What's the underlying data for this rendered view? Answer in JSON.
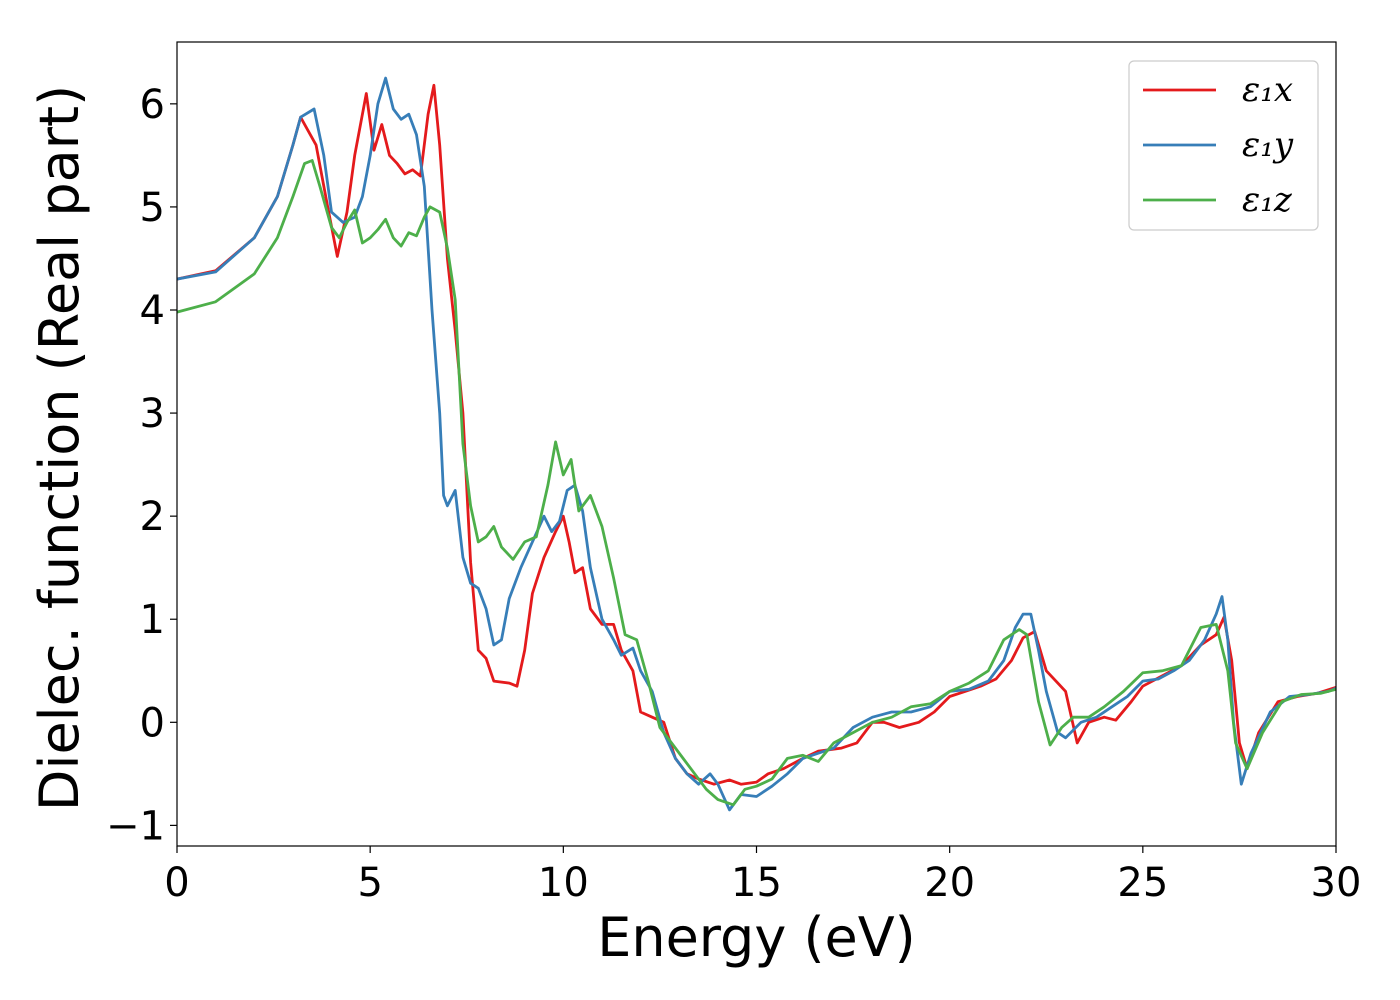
{
  "chart_data": {
    "type": "line",
    "title": "",
    "xlabel": "Energy (eV)",
    "ylabel": "Dielec. function (Real part)",
    "xlim": [
      0,
      30
    ],
    "ylim": [
      -1.2,
      6.6
    ],
    "xticks": [
      0,
      5,
      10,
      15,
      20,
      25,
      30
    ],
    "xtick_labels": [
      "0",
      "5",
      "10",
      "15",
      "20",
      "25",
      "30"
    ],
    "yticks": [
      -1,
      0,
      1,
      2,
      3,
      4,
      5,
      6
    ],
    "ytick_labels": [
      "−1",
      "0",
      "1",
      "2",
      "3",
      "4",
      "5",
      "6"
    ],
    "grid": false,
    "legend_position": "top-right",
    "series": [
      {
        "name": "ε₁x",
        "color": "#e41a1c",
        "points": [
          [
            0,
            4.3
          ],
          [
            1,
            4.38
          ],
          [
            2,
            4.7
          ],
          [
            2.6,
            5.1
          ],
          [
            3.0,
            5.6
          ],
          [
            3.2,
            5.87
          ],
          [
            3.6,
            5.6
          ],
          [
            3.9,
            5.0
          ],
          [
            4.15,
            4.52
          ],
          [
            4.4,
            4.95
          ],
          [
            4.6,
            5.5
          ],
          [
            4.9,
            6.1
          ],
          [
            5.1,
            5.55
          ],
          [
            5.3,
            5.8
          ],
          [
            5.5,
            5.5
          ],
          [
            5.7,
            5.42
          ],
          [
            5.9,
            5.32
          ],
          [
            6.1,
            5.36
          ],
          [
            6.3,
            5.3
          ],
          [
            6.5,
            5.9
          ],
          [
            6.65,
            6.18
          ],
          [
            6.8,
            5.6
          ],
          [
            7.0,
            4.5
          ],
          [
            7.2,
            3.8
          ],
          [
            7.4,
            3.0
          ],
          [
            7.6,
            1.55
          ],
          [
            7.8,
            0.7
          ],
          [
            8.0,
            0.62
          ],
          [
            8.2,
            0.4
          ],
          [
            8.6,
            0.38
          ],
          [
            8.8,
            0.35
          ],
          [
            9.0,
            0.7
          ],
          [
            9.2,
            1.25
          ],
          [
            9.5,
            1.6
          ],
          [
            9.8,
            1.85
          ],
          [
            10.0,
            2.0
          ],
          [
            10.15,
            1.75
          ],
          [
            10.3,
            1.45
          ],
          [
            10.5,
            1.5
          ],
          [
            10.7,
            1.1
          ],
          [
            11.0,
            0.95
          ],
          [
            11.3,
            0.95
          ],
          [
            11.5,
            0.7
          ],
          [
            11.8,
            0.5
          ],
          [
            12.0,
            0.1
          ],
          [
            12.3,
            0.05
          ],
          [
            12.6,
            0.0
          ],
          [
            12.9,
            -0.35
          ],
          [
            13.2,
            -0.5
          ],
          [
            13.5,
            -0.55
          ],
          [
            13.9,
            -0.6
          ],
          [
            14.3,
            -0.56
          ],
          [
            14.6,
            -0.6
          ],
          [
            15.0,
            -0.58
          ],
          [
            15.3,
            -0.5
          ],
          [
            15.7,
            -0.45
          ],
          [
            16.2,
            -0.35
          ],
          [
            16.6,
            -0.28
          ],
          [
            17.2,
            -0.25
          ],
          [
            17.6,
            -0.2
          ],
          [
            18.0,
            0.0
          ],
          [
            18.3,
            0.0
          ],
          [
            18.7,
            -0.05
          ],
          [
            19.2,
            0.0
          ],
          [
            19.6,
            0.1
          ],
          [
            20.0,
            0.25
          ],
          [
            20.4,
            0.3
          ],
          [
            20.8,
            0.35
          ],
          [
            21.2,
            0.42
          ],
          [
            21.6,
            0.6
          ],
          [
            21.9,
            0.82
          ],
          [
            22.2,
            0.88
          ],
          [
            22.5,
            0.5
          ],
          [
            22.8,
            0.38
          ],
          [
            23.0,
            0.3
          ],
          [
            23.3,
            -0.2
          ],
          [
            23.6,
            0.0
          ],
          [
            24.0,
            0.05
          ],
          [
            24.3,
            0.02
          ],
          [
            24.7,
            0.2
          ],
          [
            25.0,
            0.35
          ],
          [
            25.5,
            0.45
          ],
          [
            26.0,
            0.55
          ],
          [
            26.5,
            0.75
          ],
          [
            26.9,
            0.85
          ],
          [
            27.1,
            1.02
          ],
          [
            27.3,
            0.6
          ],
          [
            27.5,
            -0.2
          ],
          [
            27.7,
            -0.45
          ],
          [
            28.0,
            -0.1
          ],
          [
            28.5,
            0.2
          ],
          [
            29.0,
            0.25
          ],
          [
            29.5,
            0.28
          ],
          [
            30,
            0.34
          ]
        ]
      },
      {
        "name": "ε₁y",
        "color": "#377eb8",
        "points": [
          [
            0,
            4.3
          ],
          [
            1,
            4.37
          ],
          [
            2,
            4.7
          ],
          [
            2.6,
            5.1
          ],
          [
            3.0,
            5.6
          ],
          [
            3.2,
            5.87
          ],
          [
            3.55,
            5.95
          ],
          [
            3.8,
            5.5
          ],
          [
            4.0,
            4.95
          ],
          [
            4.3,
            4.85
          ],
          [
            4.6,
            4.9
          ],
          [
            4.8,
            5.1
          ],
          [
            5.0,
            5.5
          ],
          [
            5.2,
            6.0
          ],
          [
            5.4,
            6.25
          ],
          [
            5.6,
            5.95
          ],
          [
            5.8,
            5.85
          ],
          [
            6.0,
            5.9
          ],
          [
            6.2,
            5.7
          ],
          [
            6.4,
            5.2
          ],
          [
            6.6,
            4.0
          ],
          [
            6.8,
            3.0
          ],
          [
            6.9,
            2.2
          ],
          [
            7.0,
            2.1
          ],
          [
            7.2,
            2.25
          ],
          [
            7.4,
            1.6
          ],
          [
            7.6,
            1.35
          ],
          [
            7.8,
            1.3
          ],
          [
            8.0,
            1.1
          ],
          [
            8.2,
            0.75
          ],
          [
            8.4,
            0.8
          ],
          [
            8.6,
            1.2
          ],
          [
            8.9,
            1.5
          ],
          [
            9.2,
            1.75
          ],
          [
            9.5,
            2.0
          ],
          [
            9.7,
            1.85
          ],
          [
            9.9,
            1.95
          ],
          [
            10.1,
            2.25
          ],
          [
            10.3,
            2.3
          ],
          [
            10.5,
            2.05
          ],
          [
            10.7,
            1.5
          ],
          [
            11.0,
            1.0
          ],
          [
            11.3,
            0.8
          ],
          [
            11.5,
            0.65
          ],
          [
            11.8,
            0.72
          ],
          [
            12.0,
            0.5
          ],
          [
            12.3,
            0.3
          ],
          [
            12.6,
            -0.1
          ],
          [
            12.9,
            -0.35
          ],
          [
            13.2,
            -0.5
          ],
          [
            13.5,
            -0.6
          ],
          [
            13.8,
            -0.5
          ],
          [
            14.0,
            -0.6
          ],
          [
            14.3,
            -0.85
          ],
          [
            14.6,
            -0.7
          ],
          [
            15.0,
            -0.72
          ],
          [
            15.4,
            -0.62
          ],
          [
            15.8,
            -0.5
          ],
          [
            16.2,
            -0.35
          ],
          [
            16.6,
            -0.3
          ],
          [
            17.0,
            -0.25
          ],
          [
            17.5,
            -0.05
          ],
          [
            18.0,
            0.05
          ],
          [
            18.5,
            0.1
          ],
          [
            19.0,
            0.1
          ],
          [
            19.5,
            0.15
          ],
          [
            20.0,
            0.3
          ],
          [
            20.5,
            0.32
          ],
          [
            21.0,
            0.4
          ],
          [
            21.4,
            0.6
          ],
          [
            21.7,
            0.92
          ],
          [
            21.9,
            1.05
          ],
          [
            22.1,
            1.05
          ],
          [
            22.3,
            0.7
          ],
          [
            22.5,
            0.3
          ],
          [
            22.8,
            -0.1
          ],
          [
            23.0,
            -0.15
          ],
          [
            23.4,
            0.0
          ],
          [
            23.8,
            0.05
          ],
          [
            24.2,
            0.15
          ],
          [
            24.6,
            0.25
          ],
          [
            25.0,
            0.4
          ],
          [
            25.4,
            0.42
          ],
          [
            25.8,
            0.5
          ],
          [
            26.2,
            0.6
          ],
          [
            26.6,
            0.8
          ],
          [
            26.9,
            1.05
          ],
          [
            27.05,
            1.22
          ],
          [
            27.2,
            0.8
          ],
          [
            27.35,
            0.0
          ],
          [
            27.55,
            -0.6
          ],
          [
            27.8,
            -0.3
          ],
          [
            28.3,
            0.1
          ],
          [
            28.8,
            0.25
          ],
          [
            29.3,
            0.27
          ],
          [
            29.8,
            0.3
          ],
          [
            30,
            0.33
          ]
        ]
      },
      {
        "name": "ε₁z",
        "color": "#4daf4a",
        "points": [
          [
            0,
            3.98
          ],
          [
            1,
            4.08
          ],
          [
            2,
            4.35
          ],
          [
            2.6,
            4.7
          ],
          [
            3.0,
            5.1
          ],
          [
            3.3,
            5.42
          ],
          [
            3.5,
            5.45
          ],
          [
            3.7,
            5.2
          ],
          [
            4.0,
            4.8
          ],
          [
            4.2,
            4.7
          ],
          [
            4.4,
            4.85
          ],
          [
            4.6,
            4.97
          ],
          [
            4.8,
            4.65
          ],
          [
            5.0,
            4.7
          ],
          [
            5.2,
            4.78
          ],
          [
            5.4,
            4.88
          ],
          [
            5.6,
            4.7
          ],
          [
            5.8,
            4.62
          ],
          [
            6.0,
            4.75
          ],
          [
            6.2,
            4.72
          ],
          [
            6.4,
            4.9
          ],
          [
            6.55,
            5.0
          ],
          [
            6.8,
            4.95
          ],
          [
            7.0,
            4.6
          ],
          [
            7.2,
            4.1
          ],
          [
            7.4,
            2.7
          ],
          [
            7.6,
            2.1
          ],
          [
            7.8,
            1.75
          ],
          [
            8.0,
            1.8
          ],
          [
            8.2,
            1.9
          ],
          [
            8.4,
            1.7
          ],
          [
            8.7,
            1.58
          ],
          [
            9.0,
            1.75
          ],
          [
            9.3,
            1.8
          ],
          [
            9.6,
            2.3
          ],
          [
            9.8,
            2.72
          ],
          [
            10.0,
            2.4
          ],
          [
            10.2,
            2.55
          ],
          [
            10.4,
            2.05
          ],
          [
            10.7,
            2.2
          ],
          [
            11.0,
            1.9
          ],
          [
            11.3,
            1.4
          ],
          [
            11.6,
            0.85
          ],
          [
            11.9,
            0.8
          ],
          [
            12.2,
            0.4
          ],
          [
            12.5,
            -0.05
          ],
          [
            12.8,
            -0.2
          ],
          [
            13.1,
            -0.35
          ],
          [
            13.4,
            -0.5
          ],
          [
            13.7,
            -0.65
          ],
          [
            14.0,
            -0.75
          ],
          [
            14.4,
            -0.8
          ],
          [
            14.7,
            -0.65
          ],
          [
            15.0,
            -0.62
          ],
          [
            15.4,
            -0.55
          ],
          [
            15.8,
            -0.35
          ],
          [
            16.2,
            -0.32
          ],
          [
            16.6,
            -0.38
          ],
          [
            17.0,
            -0.2
          ],
          [
            17.5,
            -0.1
          ],
          [
            18.0,
            0.0
          ],
          [
            18.5,
            0.05
          ],
          [
            19.0,
            0.15
          ],
          [
            19.5,
            0.18
          ],
          [
            20.0,
            0.3
          ],
          [
            20.5,
            0.38
          ],
          [
            21.0,
            0.5
          ],
          [
            21.4,
            0.8
          ],
          [
            21.8,
            0.9
          ],
          [
            22.0,
            0.85
          ],
          [
            22.3,
            0.2
          ],
          [
            22.6,
            -0.22
          ],
          [
            22.9,
            -0.05
          ],
          [
            23.2,
            0.05
          ],
          [
            23.6,
            0.05
          ],
          [
            24.0,
            0.15
          ],
          [
            24.5,
            0.3
          ],
          [
            25.0,
            0.48
          ],
          [
            25.5,
            0.5
          ],
          [
            26.0,
            0.55
          ],
          [
            26.5,
            0.92
          ],
          [
            26.9,
            0.95
          ],
          [
            27.2,
            0.5
          ],
          [
            27.4,
            -0.2
          ],
          [
            27.7,
            -0.45
          ],
          [
            28.1,
            -0.1
          ],
          [
            28.6,
            0.2
          ],
          [
            29.1,
            0.27
          ],
          [
            29.6,
            0.28
          ],
          [
            30,
            0.32
          ]
        ]
      }
    ]
  }
}
